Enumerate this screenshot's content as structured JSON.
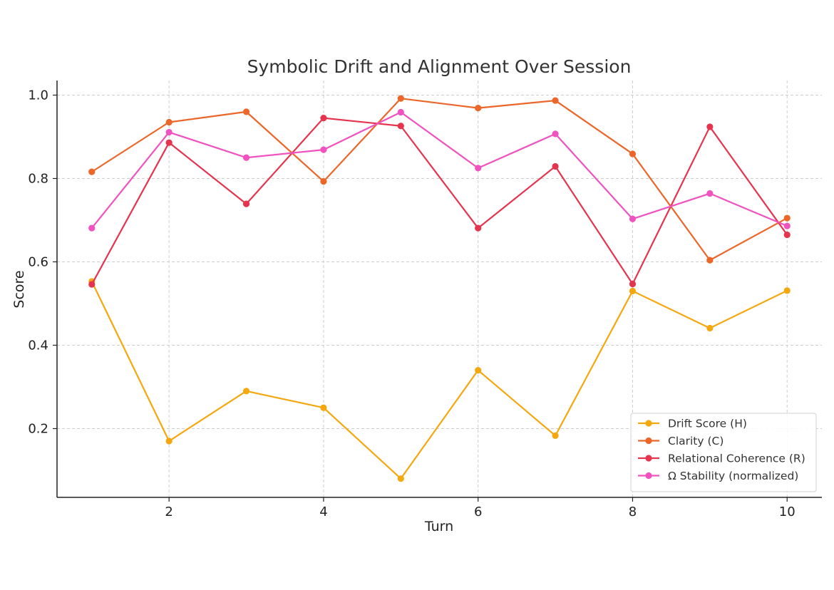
{
  "chart_data": {
    "type": "line",
    "title": "Symbolic Drift and Alignment Over Session",
    "xlabel": "Turn",
    "ylabel": "Score",
    "x": [
      1,
      2,
      3,
      4,
      5,
      6,
      7,
      8,
      9,
      10
    ],
    "xlim": [
      0.55,
      10.45
    ],
    "ylim": [
      0.035,
      1.035
    ],
    "xticks": [
      2,
      4,
      6,
      8,
      10
    ],
    "yticks": [
      0.2,
      0.4,
      0.6,
      0.8,
      1.0
    ],
    "xtick_labels": [
      "2",
      "4",
      "6",
      "8",
      "10"
    ],
    "ytick_labels": [
      "0.2",
      "0.4",
      "0.6",
      "0.8",
      "1.0"
    ],
    "grid": true,
    "legend_position": "lower-right",
    "series": [
      {
        "name": "Drift Score (H)",
        "color": "#f5a70f",
        "values": [
          0.553,
          0.17,
          0.29,
          0.25,
          0.08,
          0.34,
          0.183,
          0.53,
          0.441,
          0.531
        ]
      },
      {
        "name": "Clarity (C)",
        "color": "#eb6628",
        "values": [
          0.816,
          0.935,
          0.96,
          0.793,
          0.992,
          0.969,
          0.987,
          0.859,
          0.604,
          0.705
        ]
      },
      {
        "name": "Relational Coherence (R)",
        "color": "#e5344e",
        "values": [
          0.546,
          0.886,
          0.739,
          0.945,
          0.926,
          0.681,
          0.829,
          0.547,
          0.924,
          0.665
        ]
      },
      {
        "name": "Ω Stability (normalized)",
        "color": "#f052c0",
        "values": [
          0.681,
          0.911,
          0.85,
          0.869,
          0.959,
          0.825,
          0.907,
          0.703,
          0.764,
          0.686
        ]
      }
    ]
  }
}
